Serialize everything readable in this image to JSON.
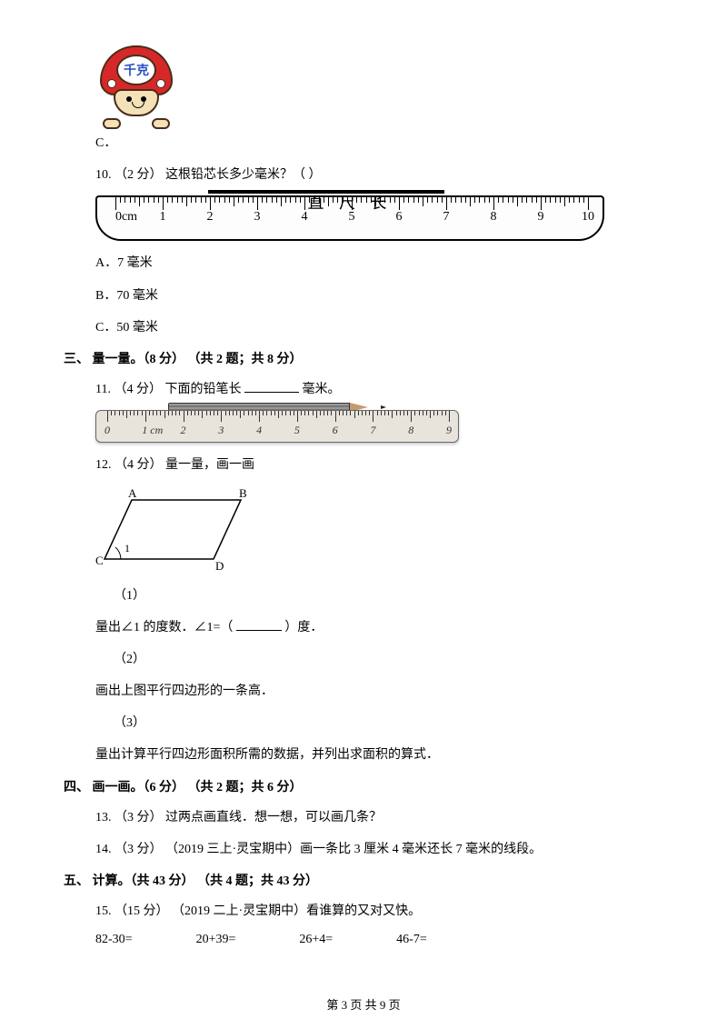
{
  "mushroom_label": "千克",
  "option_c_prefix": "C．",
  "q10": {
    "stem": "10.  （2 分）  这根铅芯长多少毫米？（      ）",
    "ruler_title": "直 尺 长",
    "ruler_numbers": [
      "0cm",
      "1",
      "2",
      "3",
      "4",
      "5",
      "6",
      "7",
      "8",
      "9",
      "10"
    ],
    "lead_start_cm": 2,
    "lead_end_cm": 7,
    "opt_a": "A．7 毫米",
    "opt_b": "B．70 毫米",
    "opt_c": "C．50 毫米"
  },
  "section3": "三、  量一量。（8 分）  （共 2 题；共 8 分）",
  "q11": {
    "stem_a": "11.  （4 分）  下面的铅笔长",
    "stem_b": "毫米。",
    "ruler_numbers": [
      "0",
      "1 cm",
      "2",
      "3",
      "4",
      "5",
      "6",
      "7",
      "8",
      "9"
    ],
    "pencil_start_cm": 2,
    "pencil_end_cm": 7.5
  },
  "q12": {
    "stem": "12.  （4 分）  量一量，画一画",
    "labels": {
      "A": "A",
      "B": "B",
      "C": "C",
      "D": "D",
      "angle": "1"
    },
    "p1_label": "（1）",
    "p1_a": "量出∠1 的度数．∠1=（",
    "p1_b": "）度．",
    "p2_label": "（2）",
    "p2": "画出上图平行四边形的一条高．",
    "p3_label": "（3）",
    "p3": "量出计算平行四边形面积所需的数据，并列出求面积的算式．"
  },
  "section4": "四、  画一画。（6 分）  （共 2 题；共 6 分）",
  "q13": "13.  （3 分）  过两点画直线．想一想，可以画几条？",
  "q14": "14.  （3 分）  （2019 三上·灵宝期中）画一条比 3 厘米 4 毫米还长 7 毫米的线段。",
  "section5": "五、  计算。（共 43 分）  （共 4 题；共 43 分）",
  "q15": {
    "stem": "15.  （15 分）  （2019 二上·灵宝期中）看谁算的又对又快。",
    "items": [
      "82-30=",
      "20+39=",
      "26+4=",
      "46-7="
    ]
  },
  "footer": "第 3 页 共 9 页",
  "colors": {
    "mushroom_cap": "#d62828",
    "mushroom_text": "#2b4fc1",
    "ruler2_bg": "#e8e4dc"
  }
}
